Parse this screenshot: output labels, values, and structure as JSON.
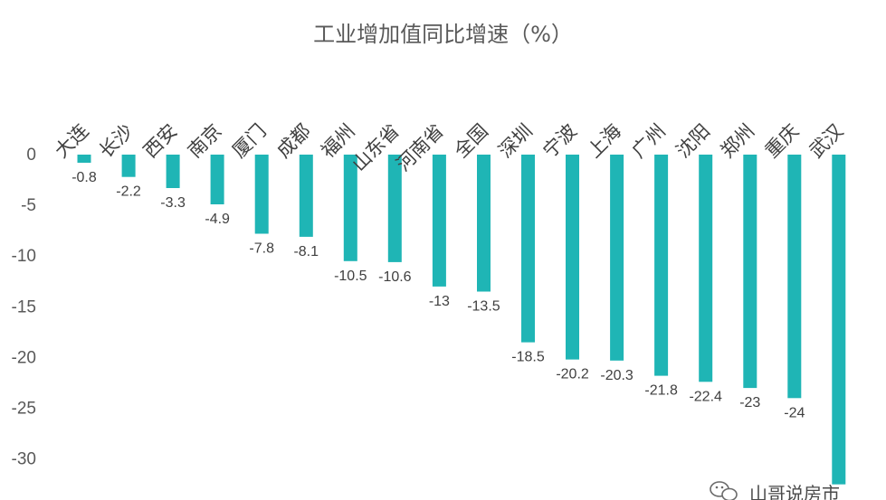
{
  "chart_data": {
    "type": "bar",
    "title": "工业增加值同比增速（%）",
    "categories": [
      "大连",
      "长沙",
      "西安",
      "南京",
      "厦门",
      "成都",
      "福州",
      "山东省",
      "河南省",
      "全国",
      "深圳",
      "宁波",
      "上海",
      "广州",
      "沈阳",
      "郑州",
      "重庆",
      "武汉"
    ],
    "values": [
      -0.8,
      -2.2,
      -3.3,
      -4.9,
      -7.8,
      -8.1,
      -10.5,
      -10.6,
      -13,
      -13.5,
      -18.5,
      -20.2,
      -20.3,
      -21.8,
      -22.4,
      -23,
      -24,
      -32.5
    ],
    "data_labels": [
      "-0.8",
      "-2.2",
      "-3.3",
      "-4.9",
      "-7.8",
      "-8.1",
      "-10.5",
      "-10.6",
      "-13",
      "-13.5",
      "-18.5",
      "-20.2",
      "-20.3",
      "-21.8",
      "-22.4",
      "-23",
      "-24",
      ""
    ],
    "y_ticks": [
      0,
      -5,
      -10,
      -15,
      -20,
      -25,
      -30
    ],
    "y_tick_labels": [
      "0",
      "-5",
      "-10",
      "-15",
      "-20",
      "-25",
      "-30"
    ],
    "ylim": [
      -35,
      0
    ],
    "xlabel": "",
    "ylabel": "",
    "grid": false,
    "legend": "none",
    "bar_color": "#1fb5b5"
  },
  "watermark": {
    "text": "山哥说房市",
    "icon": "wechat-icon"
  }
}
